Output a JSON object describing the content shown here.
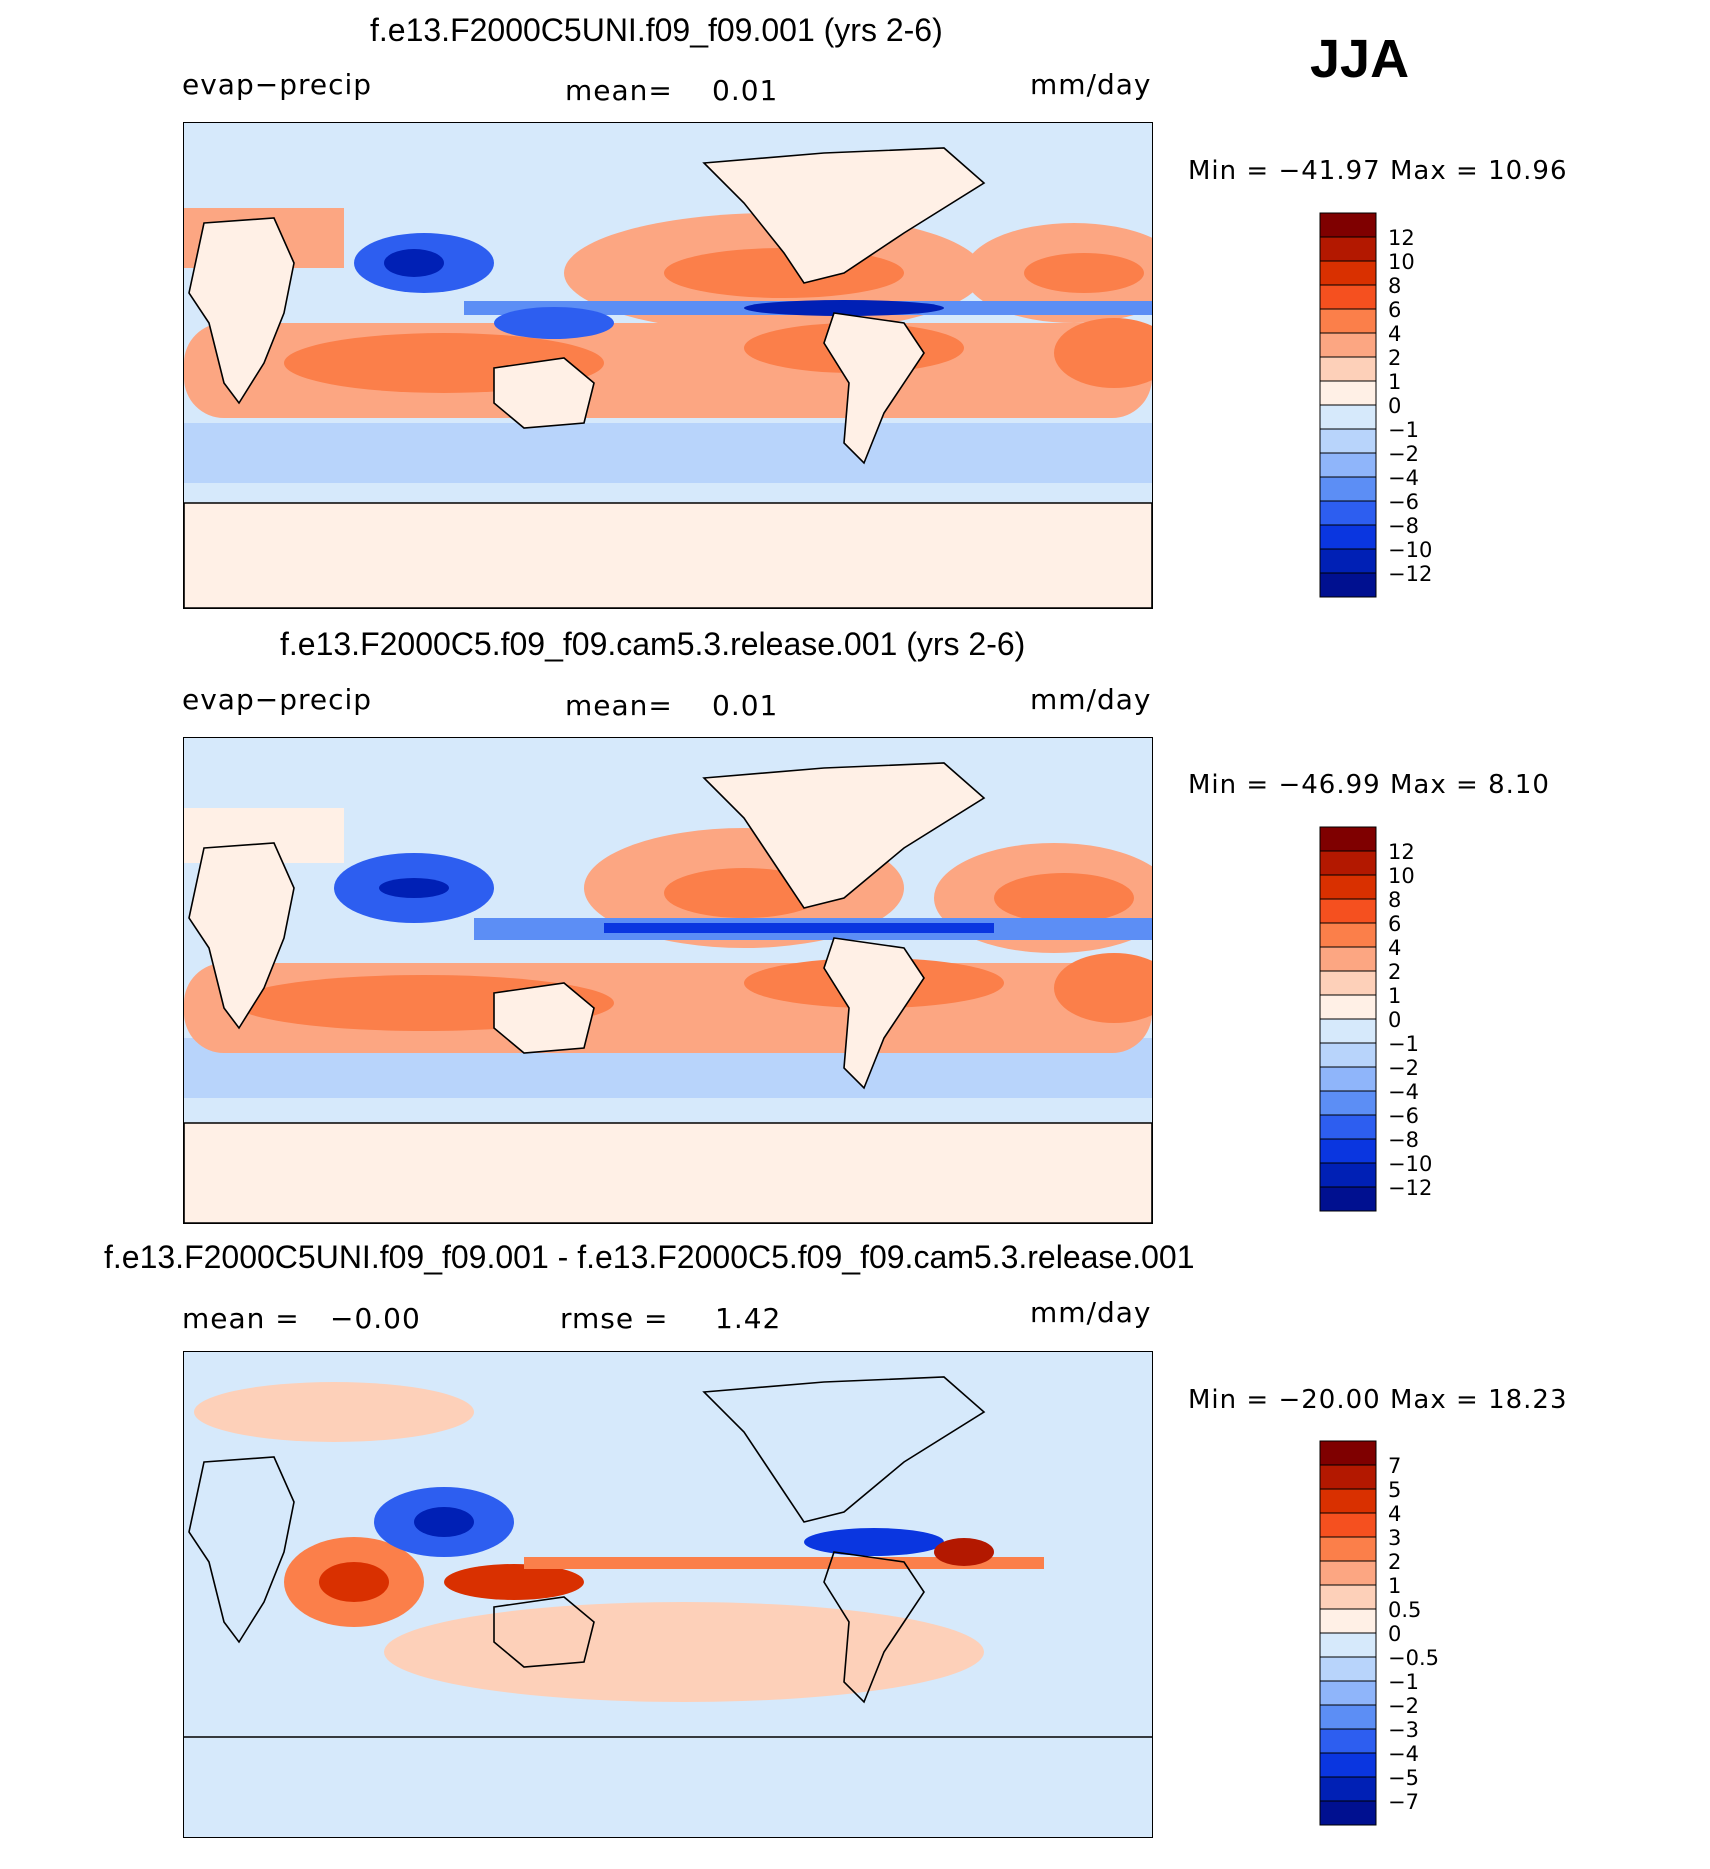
{
  "season": "JJA",
  "units": "mm/day",
  "chart_data": [
    {
      "type": "heatmap",
      "title": "f.e13.F2000C5UNI.f09_f09.001 (yrs 2-6)",
      "variable": "evap−precip",
      "mean_label": "mean=",
      "mean_value": "0.01",
      "units": "mm/day",
      "min_label": "Min  =  −41.97",
      "max_label": "Max  =    10.96",
      "colorbar_levels": [
        "12",
        "10",
        "8",
        "6",
        "4",
        "2",
        "1",
        "0",
        "−1",
        "−2",
        "−4",
        "−6",
        "−8",
        "−10",
        "−12"
      ],
      "colorbar_colors": [
        "#7f0000",
        "#b31800",
        "#d93000",
        "#f5501f",
        "#fb7f4a",
        "#fca682",
        "#fdd0b9",
        "#fff0e6",
        "#d6e9fb",
        "#b8d4fb",
        "#8fb5fa",
        "#5c8ef5",
        "#2d5ef0",
        "#0a36e0",
        "#0020b5",
        "#001090"
      ]
    },
    {
      "type": "heatmap",
      "title": "f.e13.F2000C5.f09_f09.cam5.3.release.001 (yrs 2-6)",
      "variable": "evap−precip",
      "mean_label": "mean=",
      "mean_value": "0.01",
      "units": "mm/day",
      "min_label": "Min  =  −46.99",
      "max_label": "Max  =     8.10",
      "colorbar_levels": [
        "12",
        "10",
        "8",
        "6",
        "4",
        "2",
        "1",
        "0",
        "−1",
        "−2",
        "−4",
        "−6",
        "−8",
        "−10",
        "−12"
      ],
      "colorbar_colors": [
        "#7f0000",
        "#b31800",
        "#d93000",
        "#f5501f",
        "#fb7f4a",
        "#fca682",
        "#fdd0b9",
        "#fff0e6",
        "#d6e9fb",
        "#b8d4fb",
        "#8fb5fa",
        "#5c8ef5",
        "#2d5ef0",
        "#0a36e0",
        "#0020b5",
        "#001090"
      ]
    },
    {
      "type": "heatmap",
      "title": "f.e13.F2000C5UNI.f09_f09.001 - f.e13.F2000C5.f09_f09.cam5.3.release.001",
      "mean_label": "mean  =",
      "mean_value": "−0.00",
      "rmse_label": "rmse  =",
      "rmse_value": "1.42",
      "units": "mm/day",
      "min_label": "Min  =  −20.00",
      "max_label": "Max  =    18.23",
      "colorbar_levels": [
        "7",
        "5",
        "4",
        "3",
        "2",
        "1",
        "0.5",
        "0",
        "−0.5",
        "−1",
        "−2",
        "−3",
        "−4",
        "−5",
        "−7"
      ],
      "colorbar_colors": [
        "#7f0000",
        "#b31800",
        "#d93000",
        "#f5501f",
        "#fb7f4a",
        "#fca682",
        "#fdd0b9",
        "#fff0e6",
        "#d6e9fb",
        "#b8d4fb",
        "#8fb5fa",
        "#5c8ef5",
        "#2d5ef0",
        "#0a36e0",
        "#0020b5",
        "#001090"
      ]
    }
  ]
}
